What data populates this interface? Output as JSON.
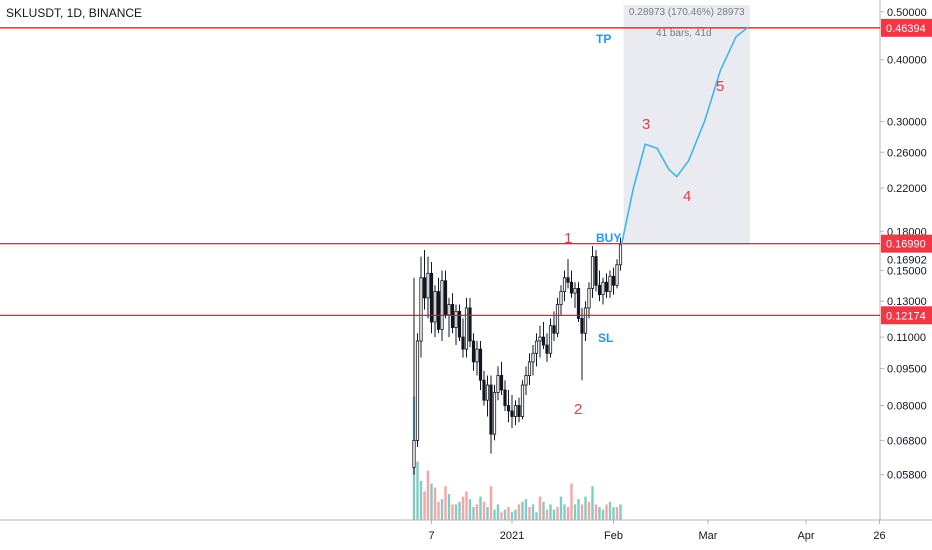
{
  "title": "SKLUSDT, 1D, BINANCE",
  "colors": {
    "up": "#131722",
    "level_line": "#ff0000",
    "label_bg": "#f23645",
    "label_text": "#ffffff",
    "projection": "#3fb6e8",
    "wave_label": "#f23645",
    "marker_label": "#2196f3",
    "measure_box": "#e4e6ee",
    "volume_up": "#80cbc4",
    "volume_down": "#f7a4a4",
    "axis_text": "#131722"
  },
  "chart_data": {
    "type": "candlestick",
    "scale": "log",
    "y_ticks": [
      "0.50000",
      "0.40000",
      "0.30000",
      "0.26000",
      "0.22000",
      "0.18000",
      "0.15000",
      "0.13000",
      "0.11000",
      "0.09500",
      "0.08000",
      "0.06800",
      "0.05800"
    ],
    "x_ticks": [
      "7",
      "2021",
      "Feb",
      "Mar",
      "Apr",
      "26"
    ],
    "price_levels": [
      {
        "name": "tp-level",
        "value": "0.46394"
      },
      {
        "name": "buy-level",
        "value": "0.16990"
      },
      {
        "name": "sl-level",
        "value": "0.12174"
      }
    ],
    "last_price": "0.16902",
    "annotations": {
      "tp": "TP",
      "buy": "BUY",
      "sl": "SL",
      "waves": [
        "1",
        "2",
        "3",
        "4",
        "5"
      ],
      "measure_line1": "0.28973 (170.46%) 28973",
      "measure_line2": "41 bars, 41d"
    },
    "candles": [
      [
        0.06,
        0.145,
        0.058,
        0.068
      ],
      [
        0.068,
        0.112,
        0.066,
        0.108
      ],
      [
        0.108,
        0.16,
        0.1,
        0.145
      ],
      [
        0.145,
        0.165,
        0.125,
        0.132
      ],
      [
        0.132,
        0.16,
        0.12,
        0.148
      ],
      [
        0.148,
        0.156,
        0.112,
        0.118
      ],
      [
        0.118,
        0.14,
        0.11,
        0.136
      ],
      [
        0.136,
        0.145,
        0.112,
        0.114
      ],
      [
        0.114,
        0.15,
        0.108,
        0.143
      ],
      [
        0.143,
        0.15,
        0.12,
        0.122
      ],
      [
        0.122,
        0.132,
        0.11,
        0.128
      ],
      [
        0.128,
        0.135,
        0.112,
        0.115
      ],
      [
        0.115,
        0.128,
        0.106,
        0.124
      ],
      [
        0.124,
        0.128,
        0.108,
        0.11
      ],
      [
        0.11,
        0.12,
        0.1,
        0.104
      ],
      [
        0.104,
        0.132,
        0.1,
        0.126
      ],
      [
        0.126,
        0.132,
        0.105,
        0.108
      ],
      [
        0.108,
        0.112,
        0.094,
        0.098
      ],
      [
        0.098,
        0.108,
        0.092,
        0.104
      ],
      [
        0.104,
        0.108,
        0.086,
        0.09
      ],
      [
        0.09,
        0.094,
        0.08,
        0.082
      ],
      [
        0.082,
        0.092,
        0.076,
        0.088
      ],
      [
        0.088,
        0.092,
        0.064,
        0.07
      ],
      [
        0.07,
        0.088,
        0.068,
        0.085
      ],
      [
        0.085,
        0.096,
        0.082,
        0.092
      ],
      [
        0.092,
        0.098,
        0.084,
        0.086
      ],
      [
        0.086,
        0.09,
        0.078,
        0.08
      ],
      [
        0.08,
        0.086,
        0.074,
        0.078
      ],
      [
        0.078,
        0.084,
        0.072,
        0.076
      ],
      [
        0.076,
        0.082,
        0.073,
        0.08
      ],
      [
        0.08,
        0.083,
        0.074,
        0.076
      ],
      [
        0.076,
        0.09,
        0.075,
        0.088
      ],
      [
        0.088,
        0.096,
        0.084,
        0.092
      ],
      [
        0.092,
        0.102,
        0.088,
        0.098
      ],
      [
        0.098,
        0.106,
        0.092,
        0.102
      ],
      [
        0.102,
        0.112,
        0.096,
        0.108
      ],
      [
        0.108,
        0.116,
        0.1,
        0.11
      ],
      [
        0.11,
        0.118,
        0.104,
        0.106
      ],
      [
        0.106,
        0.112,
        0.098,
        0.102
      ],
      [
        0.102,
        0.12,
        0.1,
        0.116
      ],
      [
        0.116,
        0.124,
        0.108,
        0.112
      ],
      [
        0.112,
        0.132,
        0.11,
        0.128
      ],
      [
        0.128,
        0.14,
        0.122,
        0.136
      ],
      [
        0.136,
        0.15,
        0.13,
        0.145
      ],
      [
        0.145,
        0.158,
        0.138,
        0.142
      ],
      [
        0.142,
        0.15,
        0.132,
        0.135
      ],
      [
        0.135,
        0.142,
        0.126,
        0.138
      ],
      [
        0.138,
        0.142,
        0.118,
        0.12
      ],
      [
        0.12,
        0.126,
        0.09,
        0.112
      ],
      [
        0.112,
        0.13,
        0.108,
        0.126
      ],
      [
        0.126,
        0.142,
        0.12,
        0.138
      ],
      [
        0.138,
        0.168,
        0.132,
        0.16
      ],
      [
        0.16,
        0.165,
        0.136,
        0.14
      ],
      [
        0.14,
        0.15,
        0.13,
        0.134
      ],
      [
        0.134,
        0.145,
        0.128,
        0.142
      ],
      [
        0.142,
        0.148,
        0.132,
        0.136
      ],
      [
        0.136,
        0.15,
        0.132,
        0.146
      ],
      [
        0.146,
        0.152,
        0.134,
        0.14
      ],
      [
        0.14,
        0.158,
        0.138,
        0.154
      ],
      [
        0.154,
        0.175,
        0.15,
        0.169
      ]
    ],
    "volume": [
      [
        0.95,
        "up"
      ],
      [
        0.45,
        "up"
      ],
      [
        0.3,
        "up"
      ],
      [
        0.22,
        "down"
      ],
      [
        0.38,
        "down"
      ],
      [
        0.28,
        "up"
      ],
      [
        0.25,
        "down"
      ],
      [
        0.14,
        "down"
      ],
      [
        0.16,
        "up"
      ],
      [
        0.26,
        "down"
      ],
      [
        0.2,
        "up"
      ],
      [
        0.12,
        "down"
      ],
      [
        0.12,
        "up"
      ],
      [
        0.14,
        "up"
      ],
      [
        0.18,
        "down"
      ],
      [
        0.22,
        "down"
      ],
      [
        0.16,
        "up"
      ],
      [
        0.1,
        "up"
      ],
      [
        0.12,
        "down"
      ],
      [
        0.18,
        "up"
      ],
      [
        0.14,
        "down"
      ],
      [
        0.1,
        "up"
      ],
      [
        0.26,
        "down"
      ],
      [
        0.08,
        "up"
      ],
      [
        0.12,
        "up"
      ],
      [
        0.06,
        "down"
      ],
      [
        0.08,
        "up"
      ],
      [
        0.1,
        "down"
      ],
      [
        0.06,
        "up"
      ],
      [
        0.08,
        "up"
      ],
      [
        0.12,
        "down"
      ],
      [
        0.14,
        "up"
      ],
      [
        0.16,
        "up"
      ],
      [
        0.1,
        "down"
      ],
      [
        0.12,
        "up"
      ],
      [
        0.06,
        "up"
      ],
      [
        0.18,
        "down"
      ],
      [
        0.14,
        "up"
      ],
      [
        0.08,
        "down"
      ],
      [
        0.12,
        "up"
      ],
      [
        0.08,
        "up"
      ],
      [
        0.1,
        "down"
      ],
      [
        0.18,
        "up"
      ],
      [
        0.12,
        "up"
      ],
      [
        0.1,
        "down"
      ],
      [
        0.28,
        "down"
      ],
      [
        0.12,
        "up"
      ],
      [
        0.16,
        "up"
      ],
      [
        0.12,
        "down"
      ],
      [
        0.18,
        "up"
      ],
      [
        0.14,
        "down"
      ],
      [
        0.26,
        "up"
      ],
      [
        0.12,
        "down"
      ],
      [
        0.1,
        "up"
      ],
      [
        0.08,
        "up"
      ],
      [
        0.12,
        "down"
      ],
      [
        0.14,
        "up"
      ],
      [
        0.1,
        "up"
      ],
      [
        0.1,
        "down"
      ],
      [
        0.12,
        "up"
      ]
    ],
    "projection": [
      [
        0.169,
        0
      ],
      [
        0.22,
        3
      ],
      [
        0.27,
        6
      ],
      [
        0.265,
        9
      ],
      [
        0.24,
        12
      ],
      [
        0.232,
        14
      ],
      [
        0.25,
        17
      ],
      [
        0.3,
        21
      ],
      [
        0.38,
        25
      ],
      [
        0.445,
        29
      ],
      [
        0.465,
        32
      ]
    ]
  }
}
